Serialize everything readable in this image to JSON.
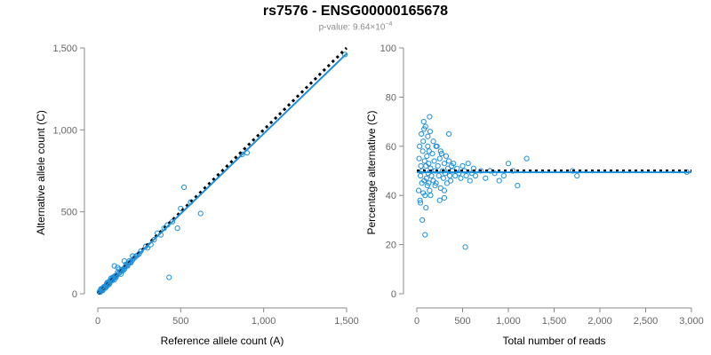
{
  "header": {
    "title": "rs7576 - ENSG00000165678",
    "pvalue_prefix": "p-value: 9.64×10",
    "pvalue_exponent": "−4"
  },
  "colors": {
    "points": "#1f8fdb",
    "fit_line": "#1f8fdb",
    "expected_line": "#000000",
    "axis": "#888888",
    "tick_label": "#666666"
  },
  "chart_data": [
    {
      "type": "scatter",
      "xlabel": "Reference allele count (A)",
      "ylabel": "Alternative allele count (C)",
      "xlim": [
        0,
        1500
      ],
      "ylim": [
        0,
        1500
      ],
      "xticks": [
        0,
        500,
        1000,
        1500
      ],
      "xtick_labels": [
        "0",
        "500",
        "1,000",
        "1,500"
      ],
      "yticks": [
        0,
        500,
        1000,
        1500
      ],
      "ytick_labels": [
        "0",
        "500",
        "1,000",
        "1,500"
      ],
      "lines": [
        {
          "style": "dotted",
          "color": "#000000",
          "x": [
            0,
            1500
          ],
          "y": [
            0,
            1500
          ]
        },
        {
          "style": "solid",
          "color": "#1f8fdb",
          "x": [
            0,
            1500
          ],
          "y": [
            0,
            1465
          ]
        }
      ],
      "points": {
        "x": [
          10,
          15,
          20,
          25,
          30,
          35,
          40,
          45,
          50,
          55,
          60,
          65,
          70,
          75,
          80,
          85,
          90,
          95,
          100,
          110,
          120,
          130,
          140,
          150,
          160,
          170,
          180,
          190,
          200,
          210,
          220,
          230,
          240,
          250,
          20,
          30,
          40,
          50,
          60,
          70,
          80,
          90,
          100,
          120,
          140,
          160,
          180,
          200,
          30,
          50,
          70,
          90,
          110,
          130,
          150,
          170,
          190,
          210,
          15,
          25,
          35,
          45,
          55,
          65,
          75,
          85,
          95,
          105,
          12,
          18,
          22,
          28,
          33,
          38,
          43,
          48,
          53,
          58,
          300,
          320,
          340,
          360,
          380,
          400,
          420,
          450,
          480,
          500,
          520,
          560,
          620,
          430,
          870,
          900,
          1490,
          100,
          120,
          160,
          210,
          260,
          290
        ],
        "y": [
          12,
          14,
          22,
          24,
          30,
          36,
          38,
          46,
          52,
          54,
          58,
          66,
          72,
          74,
          78,
          88,
          92,
          96,
          98,
          108,
          118,
          126,
          138,
          148,
          158,
          168,
          176,
          188,
          196,
          206,
          218,
          228,
          236,
          244,
          30,
          25,
          45,
          40,
          70,
          60,
          95,
          85,
          85,
          130,
          120,
          150,
          170,
          190,
          20,
          40,
          60,
          100,
          100,
          150,
          140,
          180,
          200,
          230,
          10,
          30,
          40,
          35,
          65,
          55,
          80,
          80,
          100,
          110,
          15,
          20,
          18,
          32,
          28,
          40,
          45,
          50,
          50,
          60,
          280,
          300,
          330,
          370,
          360,
          400,
          420,
          440,
          400,
          520,
          650,
          560,
          490,
          100,
          850,
          860,
          1460,
          170,
          160,
          200,
          230,
          260,
          290
        ]
      }
    },
    {
      "type": "scatter",
      "xlabel": "Total number of reads",
      "ylabel": "Percentage alternative (C)",
      "xlim": [
        0,
        3000
      ],
      "ylim": [
        0,
        100
      ],
      "xticks": [
        0,
        500,
        1000,
        1500,
        2000,
        2500,
        3000
      ],
      "xtick_labels": [
        "0",
        "500",
        "1,000",
        "1,500",
        "2,000",
        "2,500",
        "3,000"
      ],
      "yticks": [
        0,
        20,
        40,
        60,
        80,
        100
      ],
      "ytick_labels": [
        "0",
        "20",
        "40",
        "60",
        "80",
        "100"
      ],
      "lines": [
        {
          "style": "dotted",
          "color": "#000000",
          "x": [
            0,
            3000
          ],
          "y": [
            50,
            50
          ]
        },
        {
          "style": "solid",
          "color": "#1f8fdb",
          "x": [
            0,
            3000
          ],
          "y": [
            49.4,
            49.4
          ]
        }
      ],
      "points": {
        "x": [
          20,
          25,
          30,
          35,
          40,
          45,
          50,
          55,
          60,
          65,
          70,
          75,
          80,
          85,
          90,
          95,
          100,
          105,
          110,
          115,
          120,
          125,
          130,
          135,
          140,
          145,
          150,
          160,
          170,
          180,
          190,
          200,
          210,
          220,
          230,
          240,
          250,
          260,
          270,
          280,
          290,
          300,
          310,
          320,
          330,
          340,
          350,
          360,
          370,
          380,
          390,
          400,
          420,
          440,
          460,
          480,
          500,
          520,
          540,
          560,
          580,
          600,
          620,
          640,
          700,
          750,
          800,
          850,
          900,
          950,
          1000,
          1050,
          1100,
          1200,
          1700,
          1750,
          2950,
          100,
          150,
          200,
          250,
          300,
          120,
          180,
          80,
          530,
          60,
          90,
          140,
          210,
          260,
          300,
          350,
          40,
          70,
          130
        ],
        "y": [
          42,
          55,
          60,
          38,
          48,
          52,
          65,
          45,
          50,
          58,
          62,
          70,
          46,
          54,
          40,
          68,
          52,
          47,
          56,
          44,
          60,
          49,
          53,
          58,
          42,
          66,
          51,
          48,
          57,
          46,
          54,
          50,
          45,
          60,
          52,
          48,
          55,
          43,
          57,
          50,
          47,
          53,
          49,
          56,
          45,
          51,
          54,
          48,
          46,
          52,
          50,
          53,
          48,
          51,
          49,
          47,
          52,
          50,
          48,
          53,
          46,
          49,
          51,
          48,
          50,
          47,
          50,
          49,
          46,
          48,
          53,
          50,
          44,
          55,
          50,
          48,
          49.5,
          35,
          40,
          44,
          38,
          42,
          64,
          62,
          67,
          19,
          30,
          24,
          72,
          60,
          58,
          39,
          65,
          37,
          41,
          45
        ]
      }
    }
  ]
}
